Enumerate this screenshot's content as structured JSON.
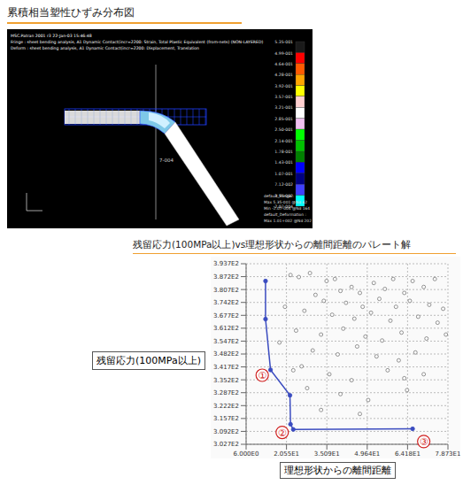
{
  "fringe_panel": {
    "title": "累積相当塑性ひずみ分布図",
    "header": [
      "MSC.Patran 2001 r3 22-Jan-03 15:46:48",
      "Fringe : sheet bending analysis, A1 Dynamic Contact(incr=2200: Strain, Total Plastic Equivalent (from-nets) (NON-LAYERED)",
      "Deform : sheet bending analysis, A1 Dynamic Contact(incr=2200: Displacement, Translation"
    ],
    "annotation": "7-004",
    "footer": [
      "default_Fringe :",
      "Max 5.35-001 @Nd 62",
      "Min -2.07-004 @Nd 164",
      "default_Deformation :",
      "Max 1.01+002 @Nd 202"
    ],
    "colorbar": {
      "range": [
        -0.000207,
        0.535
      ],
      "ticks": [
        {
          "value": 0.535,
          "label": "5.35-001"
        },
        {
          "value": 0.499,
          "label": "4.99-001"
        },
        {
          "value": 0.464,
          "label": "4.64-001"
        },
        {
          "value": 0.428,
          "label": "4.28-001"
        },
        {
          "value": 0.392,
          "label": "3.92-001"
        },
        {
          "value": 0.357,
          "label": "3.57-001"
        },
        {
          "value": 0.321,
          "label": "3.21-001"
        },
        {
          "value": 0.285,
          "label": "2.85-001"
        },
        {
          "value": 0.25,
          "label": "2.50-001"
        },
        {
          "value": 0.214,
          "label": "2.14-001"
        },
        {
          "value": 0.178,
          "label": "1.78-001"
        },
        {
          "value": 0.143,
          "label": "1.43-001"
        },
        {
          "value": 0.107,
          "label": "1.07-001"
        },
        {
          "value": 0.0712,
          "label": "7.12-002"
        },
        {
          "value": 0.0355,
          "label": "3.55-002"
        },
        {
          "value": -0.000207,
          "label": "-2.07-004"
        }
      ],
      "colors": [
        "#1a1a1a",
        "#ff0000",
        "#ff5a00",
        "#ffa500",
        "#ffff00",
        "#ffd0d0",
        "#ffffff",
        "#f0c0f0",
        "#00ff00",
        "#00c000",
        "#008000",
        "#0000ff",
        "#000080",
        "#4040ff",
        "#00ffff"
      ]
    }
  },
  "chart_data": {
    "type": "scatter",
    "title": "残留応力(100MPa以上)vs理想形状からの離間距離のパレート解",
    "x_label": "理想形状からの離間距離",
    "y_label": "残留応力(100MPa以上)",
    "xlim": [
      6,
      78.73
    ],
    "ylim": [
      302.7,
      393.7
    ],
    "xticks": [
      {
        "value": 6,
        "label": "6.000E0"
      },
      {
        "value": 20.55,
        "label": "2.055E1"
      },
      {
        "value": 35.09,
        "label": "3.509E1"
      },
      {
        "value": 49.64,
        "label": "4.964E1"
      },
      {
        "value": 64.18,
        "label": "6.418E1"
      },
      {
        "value": 78.73,
        "label": "7.873E1"
      }
    ],
    "yticks": [
      {
        "value": 302.7,
        "label": "3.027E2"
      },
      {
        "value": 309.2,
        "label": "3.092E2"
      },
      {
        "value": 315.7,
        "label": "3.157E2"
      },
      {
        "value": 322.2,
        "label": "3.222E2"
      },
      {
        "value": 328.7,
        "label": "3.287E2"
      },
      {
        "value": 335.2,
        "label": "3.352E2"
      },
      {
        "value": 341.7,
        "label": "3.417E2"
      },
      {
        "value": 348.2,
        "label": "3.482E2"
      },
      {
        "value": 354.7,
        "label": "3.547E2"
      },
      {
        "value": 361.2,
        "label": "3.612E2"
      },
      {
        "value": 367.7,
        "label": "3.677E2"
      },
      {
        "value": 374.2,
        "label": "3.742E2"
      },
      {
        "value": 380.7,
        "label": "3.807E2"
      },
      {
        "value": 387.2,
        "label": "3.872E2"
      },
      {
        "value": 393.7,
        "label": "3.937E2"
      }
    ],
    "grid": true,
    "series": [
      {
        "color": "#777777",
        "marker": "circle",
        "x": [
          22,
          25,
          29,
          35,
          38,
          40,
          44,
          47,
          52,
          56,
          59,
          63,
          66,
          70,
          74,
          31,
          34,
          42,
          48,
          54,
          60,
          65,
          72,
          77,
          27,
          37,
          45,
          51,
          58,
          68,
          75,
          24,
          33,
          41,
          49,
          55,
          62,
          71,
          78,
          30,
          39,
          46,
          53,
          61,
          67,
          26,
          36,
          44,
          57,
          63,
          70,
          28,
          40,
          50,
          64,
          33,
          47,
          23,
          18,
          20
        ],
        "y": [
          388,
          387,
          389,
          385,
          386,
          380,
          382,
          379,
          384,
          381,
          386,
          379,
          385,
          382,
          386,
          378,
          375,
          374,
          372,
          376,
          372,
          375,
          373,
          371,
          370,
          368,
          366,
          369,
          365,
          367,
          364,
          360,
          358,
          361,
          357,
          355,
          359,
          356,
          358,
          350,
          348,
          352,
          347,
          345,
          349,
          342,
          338,
          335,
          340,
          336,
          338,
          331,
          328,
          325,
          330,
          320,
          318,
          340,
          354,
          372
        ]
      },
      {
        "color": "#3b4cc0",
        "marker": "circle",
        "line_style": "solid",
        "x": [
          13,
          13,
          14.8,
          21.8,
          22,
          23,
          66
        ],
        "y": [
          385,
          365.8,
          340.2,
          327.4,
          312.8,
          310.2,
          310.5
        ]
      }
    ],
    "annotations": [
      {
        "text": "①",
        "x": 11.8,
        "y": 337.5
      },
      {
        "text": "②",
        "x": 19,
        "y": 308.7
      },
      {
        "text": "③",
        "x": 70,
        "y": 304.1
      }
    ]
  }
}
